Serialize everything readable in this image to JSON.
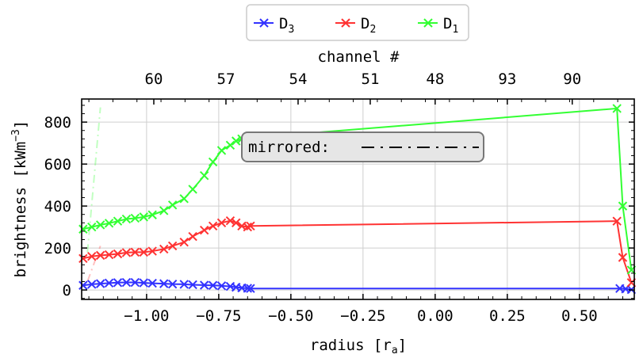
{
  "chart_data": {
    "type": "line",
    "xlabel": "radius [r",
    "xlabel_sub": "a",
    "xlabel_end": "]",
    "ylabel": "brightness [kWm",
    "ylabel_sup": "−3",
    "ylabel_end": "]",
    "top_xlabel": "channel #",
    "xlim": [
      -1.225,
      0.69
    ],
    "ylim": [
      -45,
      910
    ],
    "grid": true,
    "x_ticks": [
      -1.0,
      -0.75,
      -0.5,
      -0.25,
      0.0,
      0.25,
      0.5
    ],
    "x_tick_labels": [
      "−1.00",
      "−0.75",
      "−0.50",
      "−0.25",
      "0.00",
      "0.25",
      "0.50"
    ],
    "y_ticks": [
      0,
      200,
      400,
      600,
      800
    ],
    "y_tick_labels": [
      "0",
      "200",
      "400",
      "600",
      "800"
    ],
    "top_ticks": [
      -0.975,
      -0.725,
      -0.475,
      -0.225,
      0.0,
      0.25,
      0.475
    ],
    "top_tick_labels": [
      "60",
      "57",
      "54",
      "51",
      "48",
      "93",
      "90"
    ],
    "legend_position": "top-center, outside",
    "annotation": "mirrored: ",
    "annotation_style": "dash-dot",
    "series": [
      {
        "name": "D",
        "sub": "3",
        "color": "#3333ff",
        "x": [
          -1.22,
          -1.19,
          -1.16,
          -1.13,
          -1.1,
          -1.07,
          -1.04,
          -1.01,
          -0.98,
          -0.94,
          -0.91,
          -0.87,
          -0.84,
          -0.8,
          -0.77,
          -0.74,
          -0.71,
          -0.69,
          -0.67,
          -0.65,
          -0.64,
          0.64,
          0.66,
          0.68
        ],
        "y": [
          22,
          27,
          30,
          33,
          35,
          36,
          36,
          34,
          32,
          30,
          28,
          27,
          25,
          23,
          22,
          20,
          17,
          13,
          10,
          8,
          7,
          7,
          5,
          2
        ]
      },
      {
        "name": "D",
        "sub": "2",
        "color": "#ff3333",
        "x": [
          -1.22,
          -1.19,
          -1.16,
          -1.13,
          -1.1,
          -1.07,
          -1.04,
          -1.01,
          -0.98,
          -0.94,
          -0.91,
          -0.87,
          -0.84,
          -0.8,
          -0.77,
          -0.74,
          -0.71,
          -0.69,
          -0.67,
          -0.65,
          -0.64,
          0.63,
          0.65,
          0.68
        ],
        "y": [
          150,
          160,
          165,
          168,
          172,
          178,
          180,
          180,
          185,
          195,
          210,
          228,
          255,
          285,
          305,
          320,
          330,
          320,
          305,
          300,
          305,
          328,
          155,
          35
        ]
      },
      {
        "name": "D",
        "sub": "1",
        "color": "#33ff33",
        "x": [
          -1.22,
          -1.19,
          -1.16,
          -1.13,
          -1.1,
          -1.07,
          -1.04,
          -1.01,
          -0.98,
          -0.94,
          -0.91,
          -0.87,
          -0.84,
          -0.8,
          -0.77,
          -0.74,
          -0.71,
          -0.69,
          -0.67,
          -0.65,
          -0.64,
          0.63,
          0.65,
          0.68
        ],
        "y": [
          290,
          300,
          310,
          318,
          328,
          338,
          342,
          348,
          358,
          378,
          405,
          435,
          480,
          545,
          610,
          665,
          690,
          710,
          720,
          722,
          725,
          865,
          400,
          95
        ]
      }
    ],
    "mirrored_segments": [
      {
        "color": "#ff3333",
        "x": [
          -1.205,
          -1.16
        ],
        "y": [
          40,
          210
        ]
      },
      {
        "color": "#33ff33",
        "x": [
          -1.205,
          -1.16
        ],
        "y": [
          180,
          870
        ]
      }
    ]
  }
}
